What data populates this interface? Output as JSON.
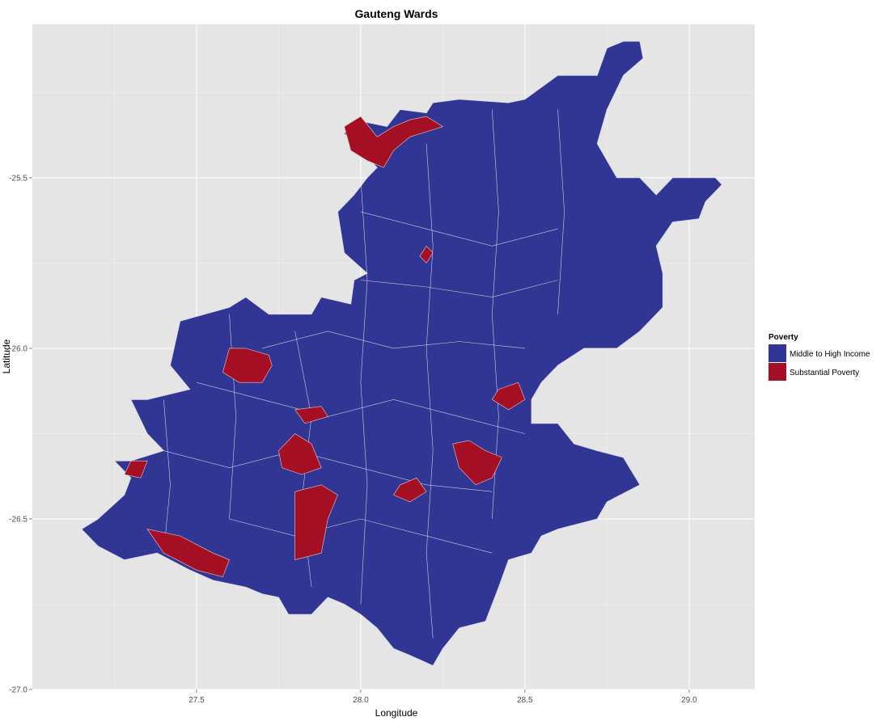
{
  "chart_data": {
    "type": "choropleth",
    "title": "Gauteng Wards",
    "xlabel": "Longitude",
    "ylabel": "Latitude",
    "xlim": [
      27.0,
      29.2
    ],
    "ylim": [
      -27.0,
      -25.05
    ],
    "x_ticks": [
      {
        "value": 27.5,
        "label": "27.5"
      },
      {
        "value": 28.0,
        "label": "28.0"
      },
      {
        "value": 28.5,
        "label": "28.5"
      },
      {
        "value": 29.0,
        "label": "29.0"
      }
    ],
    "y_ticks": [
      {
        "value": -25.5,
        "label": "-25.5"
      },
      {
        "value": -26.0,
        "label": "-26.0"
      },
      {
        "value": -26.5,
        "label": "-26.5"
      },
      {
        "value": -27.0,
        "label": "-27.0"
      }
    ],
    "grid": true,
    "panel_background": "#e5e5e5",
    "legend": {
      "title": "Poverty",
      "position": "right",
      "entries": [
        {
          "label": "Middle to High Income",
          "color": "#313593"
        },
        {
          "label": "Substantial Poverty",
          "color": "#a50f24"
        }
      ]
    },
    "outline": [
      [
        27.15,
        -26.53
      ],
      [
        27.2,
        -26.5
      ],
      [
        27.28,
        -26.43
      ],
      [
        27.3,
        -26.38
      ],
      [
        27.25,
        -26.33
      ],
      [
        27.3,
        -26.33
      ],
      [
        27.4,
        -26.3
      ],
      [
        27.35,
        -26.25
      ],
      [
        27.3,
        -26.15
      ],
      [
        27.35,
        -26.15
      ],
      [
        27.48,
        -26.12
      ],
      [
        27.42,
        -26.05
      ],
      [
        27.45,
        -25.92
      ],
      [
        27.6,
        -25.88
      ],
      [
        27.65,
        -25.85
      ],
      [
        27.72,
        -25.9
      ],
      [
        27.85,
        -25.9
      ],
      [
        27.88,
        -25.85
      ],
      [
        27.97,
        -25.87
      ],
      [
        27.98,
        -25.8
      ],
      [
        28.02,
        -25.78
      ],
      [
        27.95,
        -25.72
      ],
      [
        27.93,
        -25.6
      ],
      [
        27.98,
        -25.55
      ],
      [
        28.02,
        -25.5
      ],
      [
        28.05,
        -25.47
      ],
      [
        27.95,
        -25.37
      ],
      [
        27.98,
        -25.33
      ],
      [
        28.08,
        -25.35
      ],
      [
        28.12,
        -25.3
      ],
      [
        28.2,
        -25.31
      ],
      [
        28.22,
        -25.28
      ],
      [
        28.3,
        -25.27
      ],
      [
        28.45,
        -25.28
      ],
      [
        28.5,
        -25.27
      ],
      [
        28.6,
        -25.2
      ],
      [
        28.72,
        -25.2
      ],
      [
        28.75,
        -25.12
      ],
      [
        28.8,
        -25.1
      ],
      [
        28.85,
        -25.1
      ],
      [
        28.86,
        -25.15
      ],
      [
        28.8,
        -25.2
      ],
      [
        28.75,
        -25.3
      ],
      [
        28.72,
        -25.4
      ],
      [
        28.78,
        -25.5
      ],
      [
        28.85,
        -25.5
      ],
      [
        28.9,
        -25.55
      ],
      [
        28.95,
        -25.5
      ],
      [
        29.0,
        -25.5
      ],
      [
        29.08,
        -25.5
      ],
      [
        29.1,
        -25.52
      ],
      [
        29.05,
        -25.57
      ],
      [
        29.03,
        -25.62
      ],
      [
        28.95,
        -25.63
      ],
      [
        28.9,
        -25.7
      ],
      [
        28.92,
        -25.78
      ],
      [
        28.92,
        -25.88
      ],
      [
        28.85,
        -25.95
      ],
      [
        28.78,
        -26.0
      ],
      [
        28.68,
        -26.0
      ],
      [
        28.6,
        -26.05
      ],
      [
        28.55,
        -26.1
      ],
      [
        28.52,
        -26.15
      ],
      [
        28.52,
        -26.22
      ],
      [
        28.6,
        -26.22
      ],
      [
        28.65,
        -26.28
      ],
      [
        28.72,
        -26.3
      ],
      [
        28.8,
        -26.32
      ],
      [
        28.85,
        -26.4
      ],
      [
        28.75,
        -26.45
      ],
      [
        28.72,
        -26.5
      ],
      [
        28.6,
        -26.53
      ],
      [
        28.55,
        -26.55
      ],
      [
        28.52,
        -26.6
      ],
      [
        28.45,
        -26.62
      ],
      [
        28.42,
        -26.7
      ],
      [
        28.38,
        -26.8
      ],
      [
        28.3,
        -26.82
      ],
      [
        28.25,
        -26.88
      ],
      [
        28.22,
        -26.93
      ],
      [
        28.15,
        -26.9
      ],
      [
        28.1,
        -26.88
      ],
      [
        28.05,
        -26.82
      ],
      [
        28.0,
        -26.78
      ],
      [
        27.95,
        -26.75
      ],
      [
        27.9,
        -26.73
      ],
      [
        27.85,
        -26.78
      ],
      [
        27.78,
        -26.78
      ],
      [
        27.75,
        -26.73
      ],
      [
        27.7,
        -26.72
      ],
      [
        27.65,
        -26.7
      ],
      [
        27.55,
        -26.68
      ],
      [
        27.48,
        -26.65
      ],
      [
        27.38,
        -26.6
      ],
      [
        27.28,
        -26.62
      ],
      [
        27.2,
        -26.58
      ]
    ],
    "poverty_regions": [
      [
        [
          27.95,
          -25.35
        ],
        [
          28.0,
          -25.32
        ],
        [
          28.05,
          -25.38
        ],
        [
          28.1,
          -25.35
        ],
        [
          28.15,
          -25.33
        ],
        [
          28.2,
          -25.32
        ],
        [
          28.25,
          -25.35
        ],
        [
          28.15,
          -25.38
        ],
        [
          28.1,
          -25.42
        ],
        [
          28.07,
          -25.47
        ],
        [
          28.02,
          -25.45
        ],
        [
          27.97,
          -25.42
        ]
      ],
      [
        [
          27.6,
          -26.0
        ],
        [
          27.65,
          -26.0
        ],
        [
          27.72,
          -26.02
        ],
        [
          27.73,
          -26.05
        ],
        [
          27.7,
          -26.1
        ],
        [
          27.63,
          -26.1
        ],
        [
          27.58,
          -26.07
        ]
      ],
      [
        [
          27.75,
          -26.3
        ],
        [
          27.8,
          -26.25
        ],
        [
          27.85,
          -26.28
        ],
        [
          27.88,
          -26.35
        ],
        [
          27.82,
          -26.37
        ],
        [
          27.76,
          -26.35
        ]
      ],
      [
        [
          27.8,
          -26.42
        ],
        [
          27.88,
          -26.4
        ],
        [
          27.93,
          -26.43
        ],
        [
          27.9,
          -26.5
        ],
        [
          27.88,
          -26.6
        ],
        [
          27.8,
          -26.62
        ],
        [
          27.8,
          -26.5
        ]
      ],
      [
        [
          27.35,
          -26.53
        ],
        [
          27.45,
          -26.55
        ],
        [
          27.55,
          -26.6
        ],
        [
          27.6,
          -26.62
        ],
        [
          27.58,
          -26.67
        ],
        [
          27.5,
          -26.65
        ],
        [
          27.4,
          -26.6
        ]
      ],
      [
        [
          28.28,
          -26.28
        ],
        [
          28.33,
          -26.27
        ],
        [
          28.38,
          -26.3
        ],
        [
          28.43,
          -26.32
        ],
        [
          28.4,
          -26.38
        ],
        [
          28.35,
          -26.4
        ],
        [
          28.3,
          -26.35
        ]
      ],
      [
        [
          28.12,
          -26.4
        ],
        [
          28.17,
          -26.38
        ],
        [
          28.2,
          -26.42
        ],
        [
          28.15,
          -26.45
        ],
        [
          28.1,
          -26.43
        ]
      ],
      [
        [
          28.42,
          -26.12
        ],
        [
          28.48,
          -26.1
        ],
        [
          28.5,
          -26.15
        ],
        [
          28.45,
          -26.18
        ],
        [
          28.4,
          -26.15
        ]
      ],
      [
        [
          27.3,
          -26.33
        ],
        [
          27.35,
          -26.33
        ],
        [
          27.33,
          -26.38
        ],
        [
          27.28,
          -26.37
        ]
      ],
      [
        [
          27.8,
          -26.18
        ],
        [
          27.88,
          -26.17
        ],
        [
          27.9,
          -26.2
        ],
        [
          27.83,
          -26.22
        ]
      ],
      [
        [
          28.2,
          -25.7
        ],
        [
          28.22,
          -25.72
        ],
        [
          28.2,
          -25.75
        ],
        [
          28.18,
          -25.73
        ]
      ]
    ],
    "ward_boundaries": [
      [
        [
          27.5,
          -26.1
        ],
        [
          27.7,
          -26.15
        ],
        [
          27.9,
          -26.2
        ],
        [
          28.1,
          -26.15
        ],
        [
          28.3,
          -26.2
        ],
        [
          28.5,
          -26.25
        ]
      ],
      [
        [
          27.4,
          -26.3
        ],
        [
          27.6,
          -26.35
        ],
        [
          27.8,
          -26.3
        ],
        [
          28.0,
          -26.35
        ],
        [
          28.2,
          -26.4
        ],
        [
          28.4,
          -26.42
        ]
      ],
      [
        [
          27.6,
          -26.5
        ],
        [
          27.8,
          -26.55
        ],
        [
          28.0,
          -26.5
        ],
        [
          28.2,
          -26.55
        ],
        [
          28.4,
          -26.6
        ]
      ],
      [
        [
          27.7,
          -26.0
        ],
        [
          27.9,
          -25.95
        ],
        [
          28.1,
          -26.0
        ],
        [
          28.3,
          -25.98
        ],
        [
          28.5,
          -26.0
        ]
      ],
      [
        [
          28.0,
          -25.6
        ],
        [
          28.2,
          -25.65
        ],
        [
          28.4,
          -25.7
        ],
        [
          28.6,
          -25.65
        ]
      ],
      [
        [
          28.0,
          -25.8
        ],
        [
          28.2,
          -25.82
        ],
        [
          28.4,
          -25.85
        ],
        [
          28.6,
          -25.8
        ]
      ],
      [
        [
          27.8,
          -25.95
        ],
        [
          27.85,
          -26.2
        ],
        [
          27.82,
          -26.45
        ],
        [
          27.85,
          -26.7
        ]
      ],
      [
        [
          28.0,
          -25.5
        ],
        [
          28.02,
          -25.8
        ],
        [
          28.0,
          -26.1
        ],
        [
          28.02,
          -26.4
        ],
        [
          28.0,
          -26.75
        ]
      ],
      [
        [
          28.2,
          -25.4
        ],
        [
          28.22,
          -25.7
        ],
        [
          28.2,
          -26.0
        ],
        [
          28.22,
          -26.3
        ],
        [
          28.2,
          -26.6
        ],
        [
          28.22,
          -26.85
        ]
      ],
      [
        [
          28.4,
          -25.3
        ],
        [
          28.42,
          -25.6
        ],
        [
          28.4,
          -25.9
        ],
        [
          28.42,
          -26.2
        ],
        [
          28.4,
          -26.5
        ]
      ],
      [
        [
          28.6,
          -25.3
        ],
        [
          28.62,
          -25.6
        ],
        [
          28.6,
          -25.9
        ]
      ],
      [
        [
          27.6,
          -25.9
        ],
        [
          27.62,
          -26.2
        ],
        [
          27.6,
          -26.5
        ]
      ],
      [
        [
          27.4,
          -26.15
        ],
        [
          27.42,
          -26.4
        ],
        [
          27.4,
          -26.6
        ]
      ]
    ]
  }
}
